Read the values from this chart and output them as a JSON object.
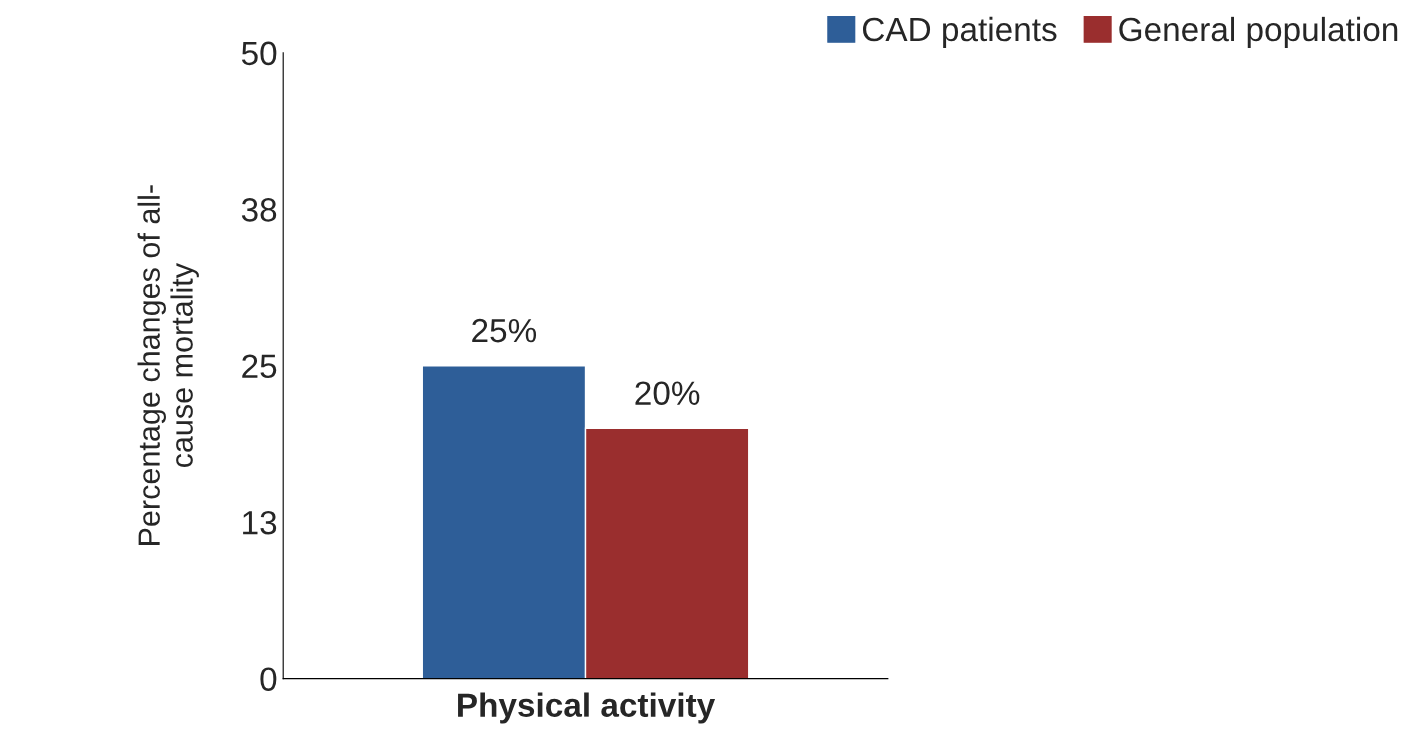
{
  "chart_data": {
    "type": "bar",
    "categories": [
      "Physical activity"
    ],
    "ylabel": "Percentage changes of all-\ncause mortality",
    "ylim": [
      0,
      50
    ],
    "yticks": [
      0,
      {
        "value": 12.5,
        "label": "13"
      },
      25,
      {
        "value": 37.5,
        "label": "38"
      },
      50
    ],
    "series": [
      {
        "name": "CAD patients",
        "color": "#2e5e98",
        "values": [
          25
        ],
        "value_labels": [
          "25%"
        ]
      },
      {
        "name": "General population",
        "color": "#9a2e2e",
        "values": [
          20
        ],
        "value_labels": [
          "20%"
        ]
      }
    ],
    "legend": "top right",
    "grid": false
  }
}
